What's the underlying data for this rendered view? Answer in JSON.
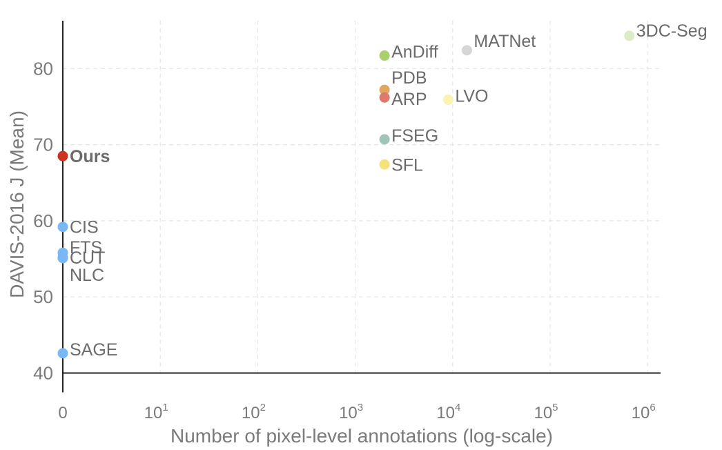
{
  "chart_data": {
    "type": "scatter",
    "title": "",
    "xlabel": "Number of pixel-level annotations (log-scale)",
    "ylabel": "DAVIS-2016 J (Mean)",
    "x_scale": "log",
    "xlim": [
      0,
      1000000
    ],
    "ylim": [
      40,
      85
    ],
    "grid": true,
    "legend": "none",
    "x_ticks": [
      {
        "value": 0,
        "base": "0",
        "exp": ""
      },
      {
        "value": 10,
        "base": "10",
        "exp": "1"
      },
      {
        "value": 100,
        "base": "10",
        "exp": "2"
      },
      {
        "value": 1000,
        "base": "10",
        "exp": "3"
      },
      {
        "value": 10000,
        "base": "10",
        "exp": "4"
      },
      {
        "value": 100000,
        "base": "10",
        "exp": "5"
      },
      {
        "value": 1000000,
        "base": "10",
        "exp": "6"
      }
    ],
    "y_ticks": [
      "40",
      "50",
      "60",
      "70",
      "80"
    ],
    "points": [
      {
        "label": "Ours",
        "x": 0,
        "y": 68.5,
        "color": "#cc3322",
        "bold": true
      },
      {
        "label": "CIS",
        "x": 0,
        "y": 59.2,
        "color": "#7ab8f5"
      },
      {
        "label": "FTS",
        "x": 0,
        "y": 55.8,
        "color": "#7ab8f5"
      },
      {
        "label": "CUT",
        "x": 0,
        "y": 55.2,
        "color": "#7ab8f5"
      },
      {
        "label": "NLC",
        "x": 0,
        "y": 55.1,
        "color": "#7ab8f5"
      },
      {
        "label": "SAGE",
        "x": 0,
        "y": 42.6,
        "color": "#7ab8f5"
      },
      {
        "label": "AnDiff",
        "x": 2000,
        "y": 81.7,
        "color": "#a9d06c"
      },
      {
        "label": "PDB",
        "x": 2000,
        "y": 77.2,
        "color": "#e0a85e"
      },
      {
        "label": "ARP",
        "x": 2000,
        "y": 76.2,
        "color": "#dd7a6e"
      },
      {
        "label": "FSEG",
        "x": 2000,
        "y": 70.7,
        "color": "#9fc4b8"
      },
      {
        "label": "SFL",
        "x": 2000,
        "y": 67.4,
        "color": "#f5e27a"
      },
      {
        "label": "LVO",
        "x": 9000,
        "y": 75.9,
        "color": "#fbf3b0"
      },
      {
        "label": "MATNet",
        "x": 14000,
        "y": 82.4,
        "color": "#d6d6d6"
      },
      {
        "label": "3DC-Seg",
        "x": 650000,
        "y": 84.3,
        "color": "#d9ecc6"
      }
    ]
  }
}
